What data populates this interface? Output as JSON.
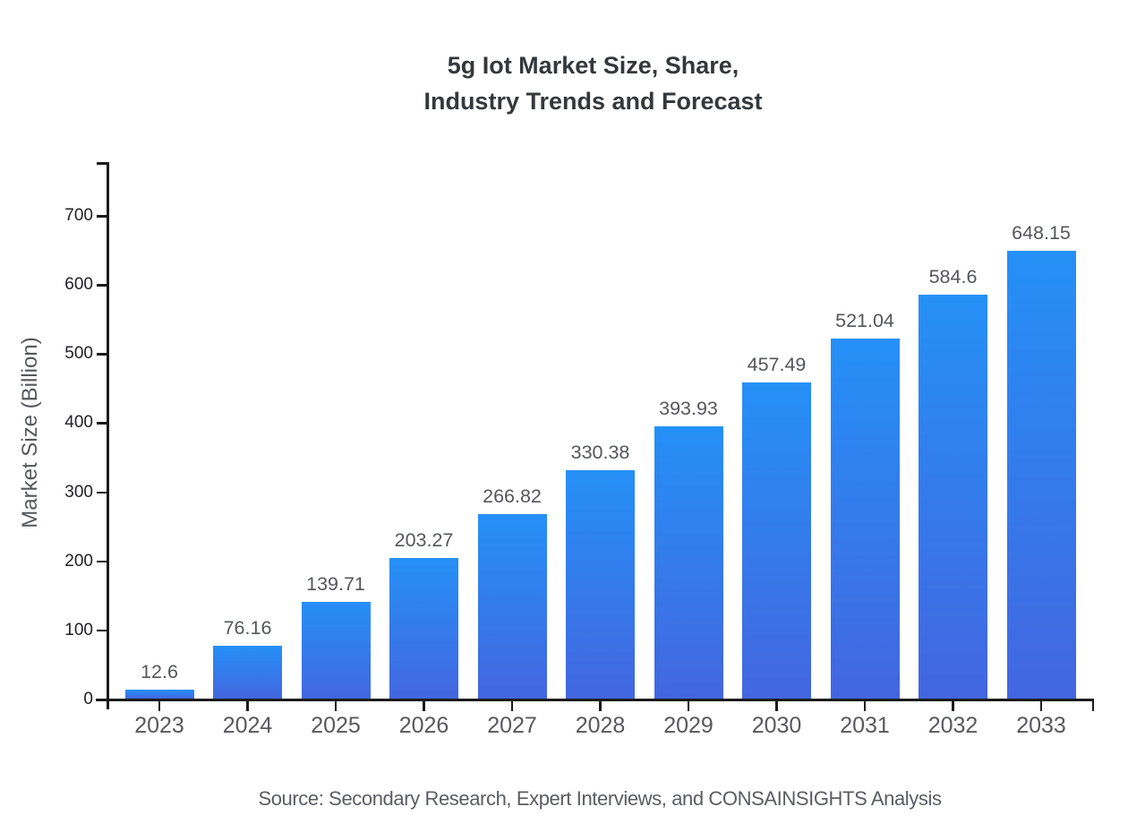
{
  "title_lines": [
    "5g Iot Market Size, Share,",
    "Industry Trends and Forecast"
  ],
  "source_note": "Source: Secondary Research, Expert Interviews, and CONSAINSIGHTS Analysis",
  "chart_data": {
    "type": "bar",
    "title": "5g Iot Market Size, Share, Industry Trends and Forecast",
    "categories": [
      "2023",
      "2024",
      "2025",
      "2026",
      "2027",
      "2028",
      "2029",
      "2030",
      "2031",
      "2032",
      "2033"
    ],
    "values": [
      12.6,
      76.16,
      139.71,
      203.27,
      266.82,
      330.38,
      393.93,
      457.49,
      521.04,
      584.6,
      648.15
    ],
    "value_labels": [
      "12.6",
      "76.16",
      "139.71",
      "203.27",
      "266.82",
      "330.38",
      "393.93",
      "457.49",
      "521.04",
      "584.6",
      "648.15"
    ],
    "xlabel": "",
    "ylabel": "Market Size (Billion)",
    "ylim": [
      0,
      775
    ],
    "yticks": [
      0,
      100,
      200,
      300,
      400,
      500,
      600,
      700
    ],
    "grid": false,
    "legend_position": "none",
    "colors": {
      "bar_gradient_top": "#2590f7",
      "bar_gradient_bottom": "#4366e0",
      "axis": "#1b1b1b",
      "value_label": "#54575a",
      "x_tick_label": "#58595b",
      "y_tick_label": "#202124",
      "title": "#35383b",
      "source": "#5a5d61"
    }
  }
}
